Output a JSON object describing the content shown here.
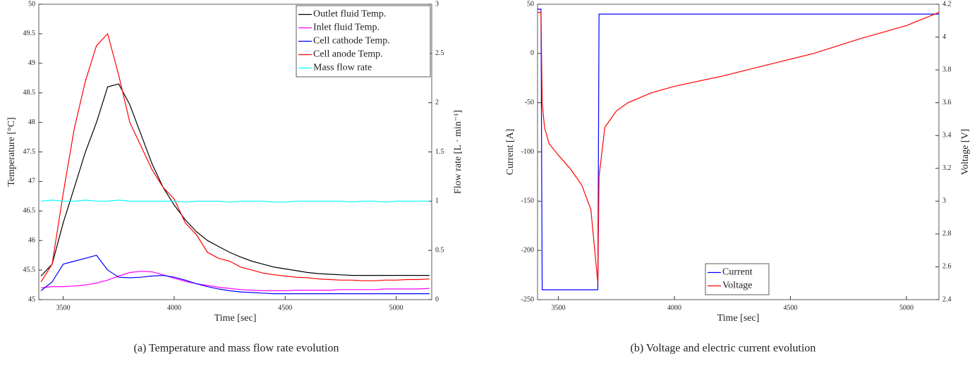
{
  "chart_data": [
    {
      "type": "line",
      "caption": "(a) Temperature and mass flow rate evolution",
      "xlabel": "Time [sec]",
      "ylabel": "Temperature [°C]",
      "y2label": "Flow rate [L · min⁻¹]",
      "xlim": [
        3390,
        5160
      ],
      "xticks": [
        3500,
        4000,
        4500,
        5000
      ],
      "ylim": [
        45,
        50
      ],
      "yticks": [
        45,
        45.5,
        46,
        46.5,
        47,
        47.5,
        48,
        48.5,
        49,
        49.5,
        50
      ],
      "y2lim": [
        0,
        3
      ],
      "y2ticks": [
        0,
        0.5,
        1,
        1.5,
        2,
        2.5,
        3
      ],
      "legend": "upper right",
      "x": [
        3400,
        3450,
        3500,
        3550,
        3600,
        3650,
        3700,
        3750,
        3800,
        3850,
        3900,
        3950,
        4000,
        4050,
        4100,
        4150,
        4200,
        4250,
        4300,
        4350,
        4400,
        4450,
        4500,
        4550,
        4600,
        4650,
        4700,
        4750,
        4800,
        4850,
        4900,
        4950,
        5000,
        5050,
        5100,
        5150
      ],
      "series": [
        {
          "name": "Outlet fluid Temp.",
          "color": "#000000",
          "values": [
            45.4,
            45.6,
            46.3,
            46.9,
            47.5,
            48.0,
            48.6,
            48.65,
            48.3,
            47.8,
            47.3,
            46.9,
            46.6,
            46.35,
            46.15,
            46.0,
            45.9,
            45.8,
            45.72,
            45.65,
            45.6,
            45.55,
            45.52,
            45.49,
            45.46,
            45.44,
            45.43,
            45.42,
            45.41,
            45.41,
            45.41,
            45.41,
            45.41,
            45.41,
            45.41,
            45.41
          ]
        },
        {
          "name": "Inlet fluid Temp.",
          "color": "#ff00ff",
          "values": [
            45.2,
            45.22,
            45.22,
            45.23,
            45.25,
            45.28,
            45.33,
            45.4,
            45.46,
            45.48,
            45.47,
            45.42,
            45.36,
            45.31,
            45.27,
            45.24,
            45.21,
            45.19,
            45.17,
            45.16,
            45.15,
            45.15,
            45.15,
            45.16,
            45.16,
            45.16,
            45.16,
            45.17,
            45.17,
            45.17,
            45.17,
            45.18,
            45.18,
            45.18,
            45.18,
            45.19
          ]
        },
        {
          "name": "Cell cathode Temp.",
          "color": "#0000ff",
          "values": [
            45.15,
            45.3,
            45.6,
            45.65,
            45.7,
            45.75,
            45.5,
            45.38,
            45.37,
            45.38,
            45.4,
            45.41,
            45.38,
            45.33,
            45.27,
            45.22,
            45.18,
            45.15,
            45.13,
            45.12,
            45.11,
            45.1,
            45.1,
            45.1,
            45.1,
            45.1,
            45.1,
            45.1,
            45.1,
            45.1,
            45.1,
            45.1,
            45.1,
            45.1,
            45.1,
            45.1
          ]
        },
        {
          "name": "Cell anode Temp.",
          "color": "#ff0000",
          "values": [
            45.3,
            45.6,
            46.8,
            47.9,
            48.7,
            49.3,
            49.5,
            48.8,
            48.0,
            47.6,
            47.2,
            46.9,
            46.7,
            46.3,
            46.1,
            45.8,
            45.7,
            45.65,
            45.55,
            45.5,
            45.45,
            45.42,
            45.4,
            45.38,
            45.37,
            45.35,
            45.34,
            45.33,
            45.33,
            45.32,
            45.32,
            45.33,
            45.33,
            45.34,
            45.34,
            45.35
          ]
        },
        {
          "name": "Mass flow rate",
          "color": "#00ffff",
          "axis": "y2",
          "values": [
            1.0,
            1.01,
            1.0,
            1.0,
            1.01,
            1.0,
            1.0,
            1.01,
            1.0,
            1.0,
            1.0,
            1.0,
            1.0,
            0.99,
            1.0,
            1.0,
            1.0,
            0.99,
            1.0,
            1.0,
            1.0,
            0.99,
            0.99,
            1.0,
            1.0,
            1.0,
            1.0,
            1.0,
            0.99,
            1.0,
            1.0,
            0.99,
            1.0,
            1.0,
            1.0,
            1.0
          ]
        }
      ]
    },
    {
      "type": "line",
      "caption": "(b) Voltage and electric current evolution",
      "xlabel": "Time [sec]",
      "ylabel": "Current [A]",
      "y2label": "Voltage [V]",
      "xlim": [
        3410,
        5140
      ],
      "xticks": [
        3500,
        4000,
        4500,
        5000
      ],
      "ylim": [
        -250,
        50
      ],
      "yticks": [
        -250,
        -200,
        -150,
        -100,
        -50,
        0,
        50
      ],
      "y2lim": [
        2.4,
        4.2
      ],
      "y2ticks": [
        2.4,
        2.6,
        2.8,
        3,
        3.2,
        3.4,
        3.6,
        3.8,
        4,
        4.2
      ],
      "legend": "lower center",
      "series": [
        {
          "name": "Current",
          "color": "#0000ff",
          "x": [
            3410,
            3425,
            3430,
            3670,
            3675,
            5140
          ],
          "values": [
            45,
            45,
            -240,
            -240,
            40,
            40
          ]
        },
        {
          "name": "Voltage",
          "color": "#ff0000",
          "axis": "y2",
          "x": [
            3410,
            3425,
            3430,
            3440,
            3460,
            3500,
            3550,
            3600,
            3640,
            3670,
            3675,
            3700,
            3750,
            3800,
            3900,
            4000,
            4200,
            4400,
            4600,
            4800,
            5000,
            5140
          ],
          "values": [
            4.15,
            4.15,
            3.6,
            3.45,
            3.35,
            3.28,
            3.2,
            3.1,
            2.95,
            2.5,
            3.15,
            3.45,
            3.55,
            3.6,
            3.66,
            3.7,
            3.76,
            3.83,
            3.9,
            3.99,
            4.07,
            4.15
          ]
        }
      ]
    }
  ]
}
